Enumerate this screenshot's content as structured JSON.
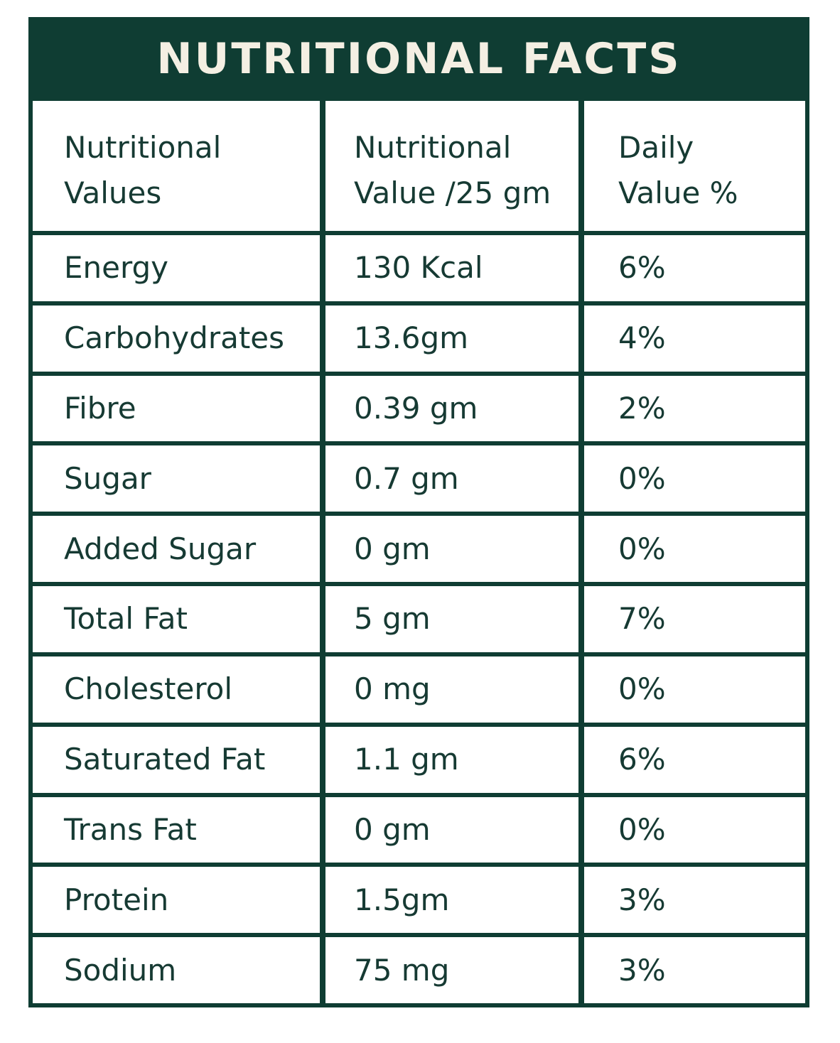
{
  "title": "NUTRITIONAL FACTS",
  "colors": {
    "panel": "#0f3d33",
    "title_text": "#f4efe3",
    "cell_text": "#163a33",
    "cell_bg": "#ffffff"
  },
  "headers": [
    {
      "line1": "Nutritional",
      "line2": "Values"
    },
    {
      "line1": "Nutritional",
      "line2": "Value /25 gm"
    },
    {
      "line1": "Daily",
      "line2": "Value %"
    }
  ],
  "rows": [
    {
      "nutrient": "Energy",
      "amount": "130 Kcal",
      "daily": "6%"
    },
    {
      "nutrient": "Carbohydrates",
      "amount": "13.6gm",
      "daily": "4%"
    },
    {
      "nutrient": "Fibre",
      "amount": "0.39 gm",
      "daily": "2%"
    },
    {
      "nutrient": "Sugar",
      "amount": "0.7 gm",
      "daily": "0%"
    },
    {
      "nutrient": "Added Sugar",
      "amount": "0 gm",
      "daily": "0%"
    },
    {
      "nutrient": "Total Fat",
      "amount": "5 gm",
      "daily": "7%"
    },
    {
      "nutrient": "Cholesterol",
      "amount": "0 mg",
      "daily": "0%"
    },
    {
      "nutrient": "Saturated Fat",
      "amount": "1.1 gm",
      "daily": "6%"
    },
    {
      "nutrient": "Trans Fat",
      "amount": "0 gm",
      "daily": "0%"
    },
    {
      "nutrient": "Protein",
      "amount": "1.5gm",
      "daily": "3%"
    },
    {
      "nutrient": "Sodium",
      "amount": "75 mg",
      "daily": "3%"
    }
  ]
}
